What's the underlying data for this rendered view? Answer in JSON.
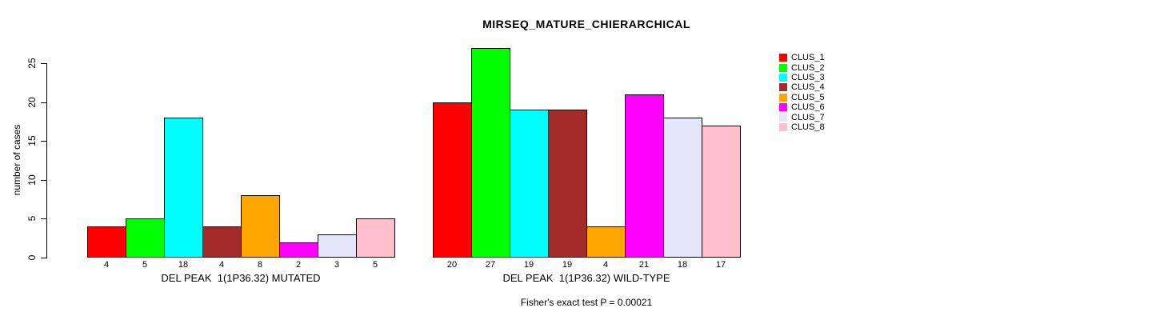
{
  "title": "MIRSEQ_MATURE_CHIERARCHICAL",
  "footer": "Fisher's exact test P = 0.00021",
  "chart_data": {
    "type": "bar",
    "title": "MIRSEQ_MATURE_CHIERARCHICAL",
    "subtitle": "Fisher's exact test P = 0.00021",
    "xlabel": "",
    "ylabel": "number of cases",
    "ylim": [
      0,
      25
    ],
    "yticks": [
      0,
      5,
      10,
      15,
      20,
      25
    ],
    "grid": false,
    "legend_position": "right",
    "categories": [
      "DEL PEAK  1(1P36.32) MUTATED",
      "DEL PEAK  1(1P36.32) WILD-TYPE"
    ],
    "series": [
      {
        "name": "CLUS_1",
        "color": "#FF0000",
        "values": [
          4,
          20
        ]
      },
      {
        "name": "CLUS_2",
        "color": "#00FF00",
        "values": [
          5,
          27
        ]
      },
      {
        "name": "CLUS_3",
        "color": "#00FFFF",
        "values": [
          18,
          19
        ]
      },
      {
        "name": "CLUS_4",
        "color": "#A52A2A",
        "values": [
          4,
          19
        ]
      },
      {
        "name": "CLUS_5",
        "color": "#FFA500",
        "values": [
          8,
          4
        ]
      },
      {
        "name": "CLUS_6",
        "color": "#FF00FF",
        "values": [
          2,
          21
        ]
      },
      {
        "name": "CLUS_7",
        "color": "#E6E6FA",
        "values": [
          3,
          18
        ]
      },
      {
        "name": "CLUS_8",
        "color": "#FFC0CB",
        "values": [
          5,
          17
        ]
      }
    ],
    "bar_value_labels_shown": true,
    "axis_color": "#000000",
    "bar_border_color": "#000000",
    "background_color": "#FFFFFF"
  }
}
